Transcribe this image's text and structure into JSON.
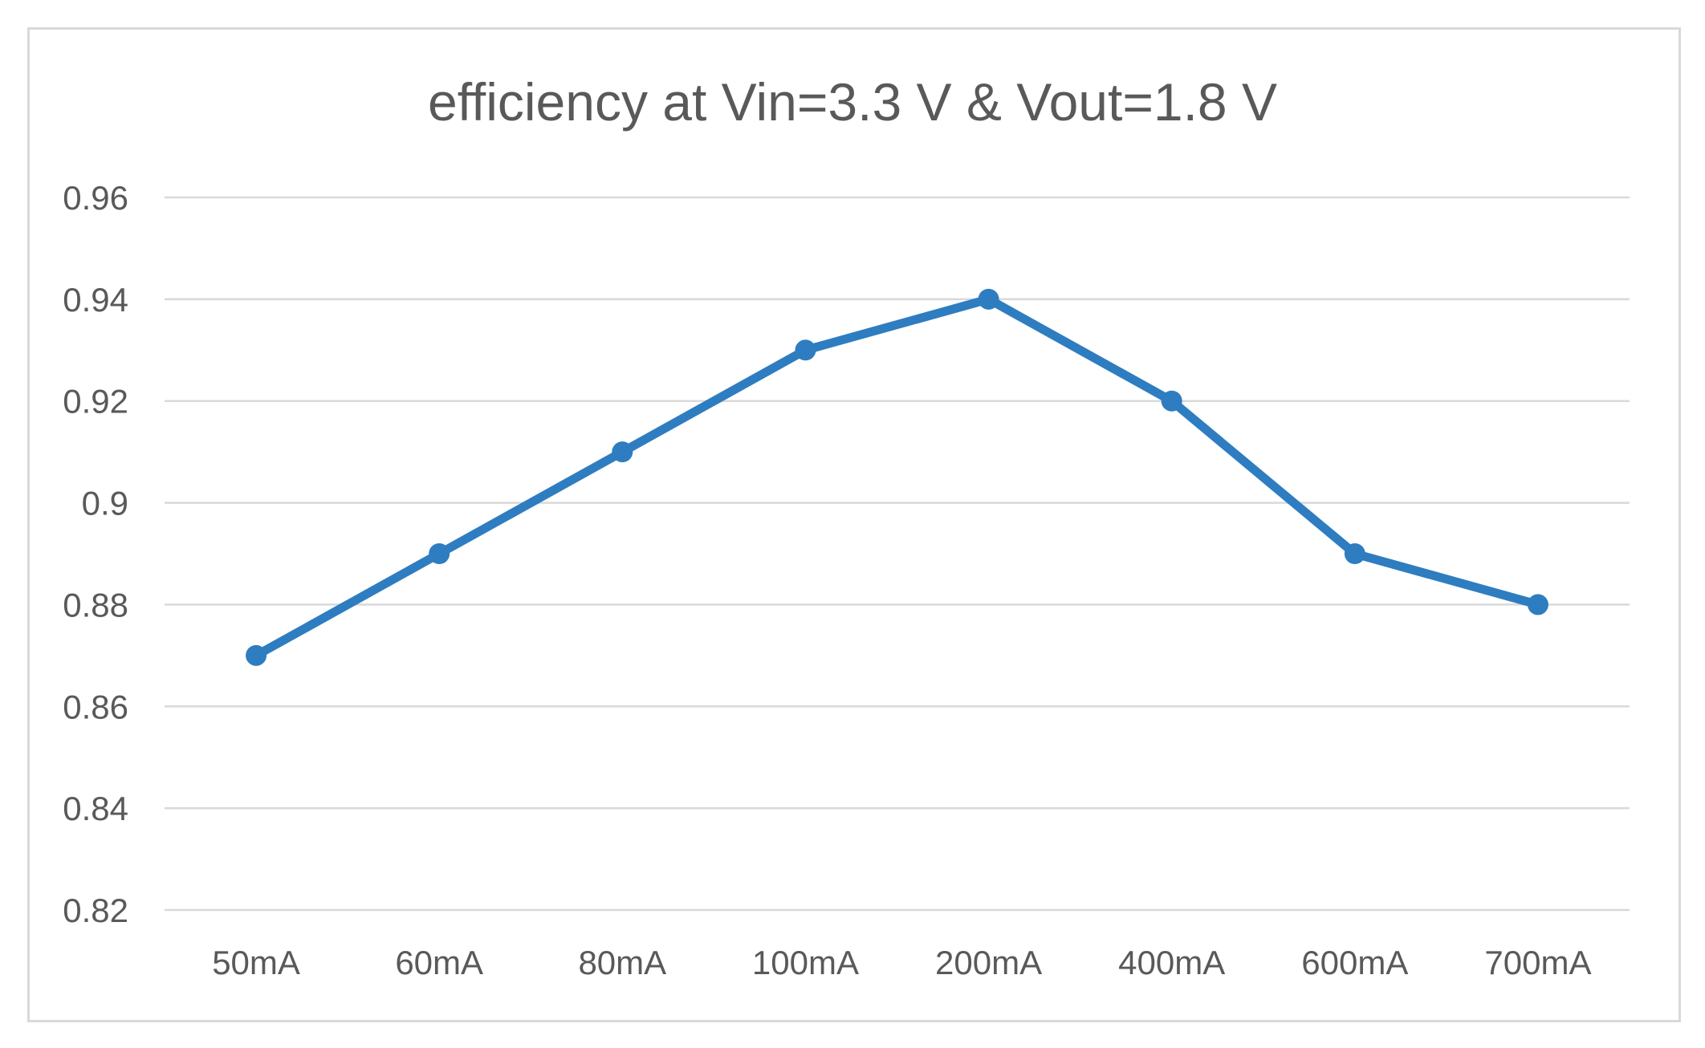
{
  "chart_data": {
    "type": "line",
    "title": "efficiency at Vin=3.3 V & Vout=1.8 V",
    "xlabel": "",
    "ylabel": "",
    "categories": [
      "50mA",
      "60mA",
      "80mA",
      "100mA",
      "200mA",
      "400mA",
      "600mA",
      "700mA"
    ],
    "series": [
      {
        "name": "efficiency",
        "values": [
          0.87,
          0.89,
          0.91,
          0.93,
          0.94,
          0.92,
          0.89,
          0.88
        ],
        "color": "#2e7dc0"
      }
    ],
    "ylim": [
      0.82,
      0.96
    ],
    "yticks": [
      "0.82",
      "0.84",
      "0.86",
      "0.88",
      "0.9",
      "0.92",
      "0.94",
      "0.96"
    ],
    "grid": true,
    "legend": "none"
  }
}
